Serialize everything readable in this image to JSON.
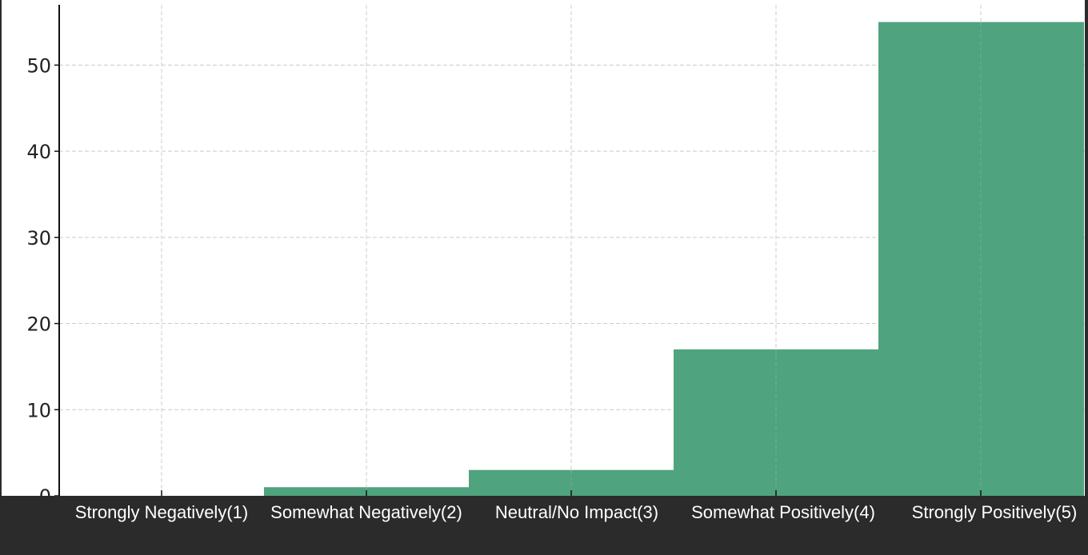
{
  "chart_data": {
    "type": "bar",
    "categories": [
      "Strongly Negatively(1)",
      "Somewhat Negatively(2)",
      "Neutral/No Impact(3)",
      "Somewhat Positively(4)",
      "Strongly Positively(5)"
    ],
    "values": [
      0,
      1,
      3,
      17,
      55
    ],
    "ylim": [
      0,
      57
    ],
    "yticks": [
      0,
      10,
      20,
      30,
      40,
      50
    ],
    "grid": true,
    "colors": {
      "bar": "#4fa37e",
      "grid": "#cccccc",
      "plot_bg": "#ffffff",
      "page_bg": "#2b2b2b",
      "tick_text": "#222222",
      "category_text": "#ffffff"
    }
  }
}
